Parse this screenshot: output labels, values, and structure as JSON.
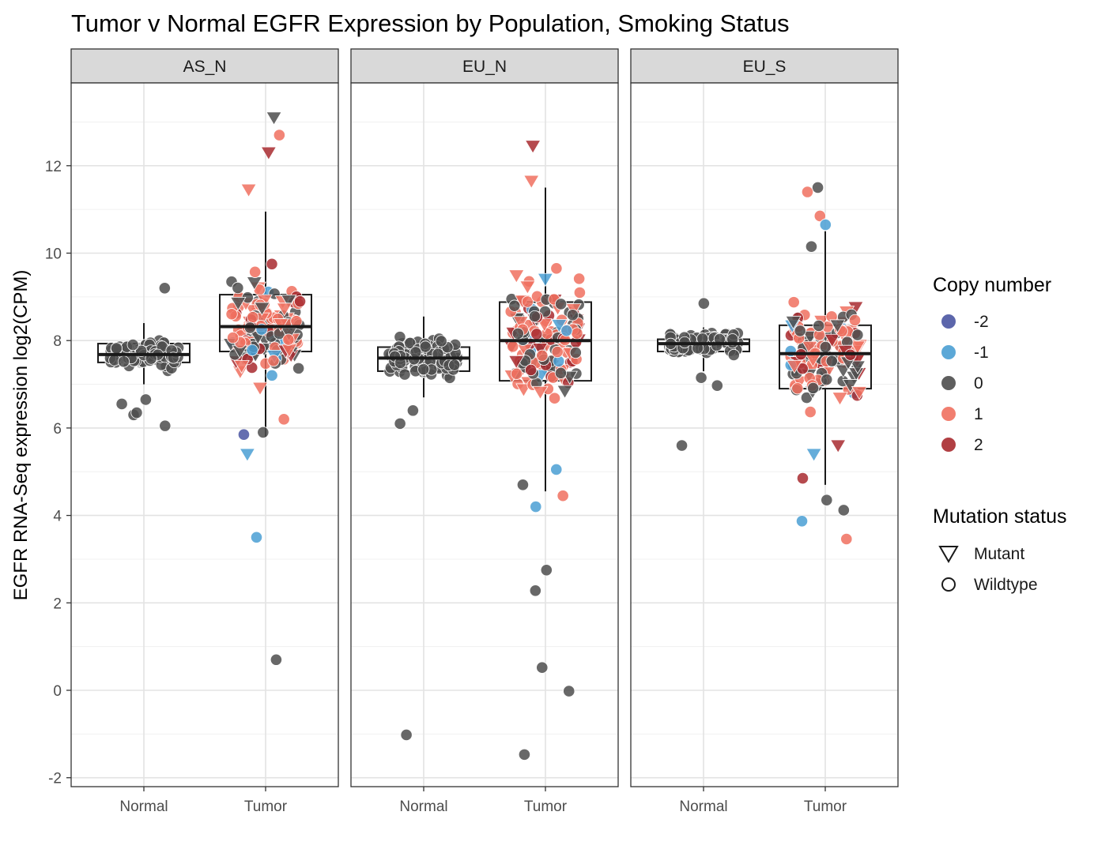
{
  "chart_data": {
    "type": "scatter",
    "subtype": "jittered points with boxplots, faceted",
    "title": "Tumor v Normal EGFR Expression by Population, Smoking Status",
    "xlabel": "",
    "ylabel": "EGFR RNA-Seq expression log2(CPM)",
    "ylim": [
      -2.2,
      13.5
    ],
    "y_ticks": [
      -2,
      0,
      2,
      4,
      6,
      8,
      10,
      12
    ],
    "categories": [
      "Normal",
      "Tumor"
    ],
    "grid": true,
    "legend_position": "right",
    "legends": [
      {
        "title": "Copy number",
        "entries": [
          {
            "label": "-2",
            "color": "#4a55a2"
          },
          {
            "label": "-1",
            "color": "#4a9fd3"
          },
          {
            "label": "0",
            "color": "#4d4d4d"
          },
          {
            "label": "1",
            "color": "#f0705f"
          },
          {
            "label": "2",
            "color": "#a82a2f"
          }
        ]
      },
      {
        "title": "Mutation status",
        "entries": [
          {
            "label": "Mutant",
            "shape": "triangle-down"
          },
          {
            "label": "Wildtype",
            "shape": "circle"
          }
        ]
      }
    ],
    "facets": [
      {
        "label": "AS_N",
        "boxes": {
          "Normal": {
            "whisker_low": 7.0,
            "q1": 7.5,
            "median": 7.68,
            "q3": 7.93,
            "whisker_high": 8.4
          },
          "Tumor": {
            "whisker_low": 5.8,
            "q1": 7.75,
            "median": 8.32,
            "q3": 9.05,
            "whisker_high": 10.95
          }
        },
        "outliers": [
          {
            "cat": "Normal",
            "y": 9.2,
            "cn": "0",
            "mut": false
          },
          {
            "cat": "Normal",
            "y": 6.65,
            "cn": "0",
            "mut": false
          },
          {
            "cat": "Normal",
            "y": 6.3,
            "cn": "0",
            "mut": false
          },
          {
            "cat": "Normal",
            "y": 6.05,
            "cn": "0",
            "mut": false
          },
          {
            "cat": "Normal",
            "y": 6.35,
            "cn": "0",
            "mut": false
          },
          {
            "cat": "Normal",
            "y": 6.55,
            "cn": "0",
            "mut": false
          },
          {
            "cat": "Tumor",
            "y": 13.1,
            "cn": "0",
            "mut": true
          },
          {
            "cat": "Tumor",
            "y": 12.7,
            "cn": "1",
            "mut": false
          },
          {
            "cat": "Tumor",
            "y": 12.3,
            "cn": "2",
            "mut": true
          },
          {
            "cat": "Tumor",
            "y": 11.45,
            "cn": "1",
            "mut": true
          },
          {
            "cat": "Tumor",
            "y": 5.4,
            "cn": "-1",
            "mut": true
          },
          {
            "cat": "Tumor",
            "y": 3.5,
            "cn": "-1",
            "mut": false
          },
          {
            "cat": "Tumor",
            "y": 0.7,
            "cn": "0",
            "mut": false
          },
          {
            "cat": "Tumor",
            "y": 5.85,
            "cn": "-2",
            "mut": false
          },
          {
            "cat": "Tumor",
            "y": 5.9,
            "cn": "0",
            "mut": false
          },
          {
            "cat": "Tumor",
            "y": 6.2,
            "cn": "1",
            "mut": false
          }
        ]
      },
      {
        "label": "EU_N",
        "boxes": {
          "Normal": {
            "whisker_low": 6.7,
            "q1": 7.3,
            "median": 7.6,
            "q3": 7.85,
            "whisker_high": 8.55
          },
          "Tumor": {
            "whisker_low": 4.55,
            "q1": 7.08,
            "median": 8.0,
            "q3": 8.88,
            "whisker_high": 11.5
          }
        },
        "outliers": [
          {
            "cat": "Normal",
            "y": 6.1,
            "cn": "0",
            "mut": false
          },
          {
            "cat": "Normal",
            "y": 6.4,
            "cn": "0",
            "mut": false
          },
          {
            "cat": "Normal",
            "y": -1.02,
            "cn": "0",
            "mut": false
          },
          {
            "cat": "Tumor",
            "y": 12.45,
            "cn": "2",
            "mut": true
          },
          {
            "cat": "Tumor",
            "y": 11.65,
            "cn": "1",
            "mut": true
          },
          {
            "cat": "Tumor",
            "y": 5.05,
            "cn": "-1",
            "mut": false
          },
          {
            "cat": "Tumor",
            "y": 4.7,
            "cn": "0",
            "mut": false
          },
          {
            "cat": "Tumor",
            "y": 4.2,
            "cn": "-1",
            "mut": false
          },
          {
            "cat": "Tumor",
            "y": 4.45,
            "cn": "1",
            "mut": false
          },
          {
            "cat": "Tumor",
            "y": 2.75,
            "cn": "0",
            "mut": false
          },
          {
            "cat": "Tumor",
            "y": 2.28,
            "cn": "0",
            "mut": false
          },
          {
            "cat": "Tumor",
            "y": 0.52,
            "cn": "0",
            "mut": false
          },
          {
            "cat": "Tumor",
            "y": -0.02,
            "cn": "0",
            "mut": false
          },
          {
            "cat": "Tumor",
            "y": -1.47,
            "cn": "0",
            "mut": false
          }
        ]
      },
      {
        "label": "EU_S",
        "boxes": {
          "Normal": {
            "whisker_low": 7.3,
            "q1": 7.75,
            "median": 7.93,
            "q3": 8.03,
            "whisker_high": 8.3
          },
          "Tumor": {
            "whisker_low": 4.7,
            "q1": 6.9,
            "median": 7.7,
            "q3": 8.35,
            "whisker_high": 10.5
          }
        },
        "outliers": [
          {
            "cat": "Normal",
            "y": 8.85,
            "cn": "0",
            "mut": false
          },
          {
            "cat": "Normal",
            "y": 7.15,
            "cn": "0",
            "mut": false
          },
          {
            "cat": "Normal",
            "y": 6.97,
            "cn": "0",
            "mut": false
          },
          {
            "cat": "Normal",
            "y": 5.6,
            "cn": "0",
            "mut": false
          },
          {
            "cat": "Tumor",
            "y": 11.5,
            "cn": "0",
            "mut": false
          },
          {
            "cat": "Tumor",
            "y": 11.4,
            "cn": "1",
            "mut": false
          },
          {
            "cat": "Tumor",
            "y": 10.85,
            "cn": "1",
            "mut": false
          },
          {
            "cat": "Tumor",
            "y": 10.65,
            "cn": "-1",
            "mut": false
          },
          {
            "cat": "Tumor",
            "y": 10.15,
            "cn": "0",
            "mut": false
          },
          {
            "cat": "Tumor",
            "y": 5.4,
            "cn": "-1",
            "mut": true
          },
          {
            "cat": "Tumor",
            "y": 5.6,
            "cn": "2",
            "mut": true
          },
          {
            "cat": "Tumor",
            "y": 4.85,
            "cn": "2",
            "mut": false
          },
          {
            "cat": "Tumor",
            "y": 4.35,
            "cn": "0",
            "mut": false
          },
          {
            "cat": "Tumor",
            "y": 4.12,
            "cn": "0",
            "mut": false
          },
          {
            "cat": "Tumor",
            "y": 3.87,
            "cn": "-1",
            "mut": false
          },
          {
            "cat": "Tumor",
            "y": 3.46,
            "cn": "1",
            "mut": false
          }
        ]
      }
    ]
  }
}
